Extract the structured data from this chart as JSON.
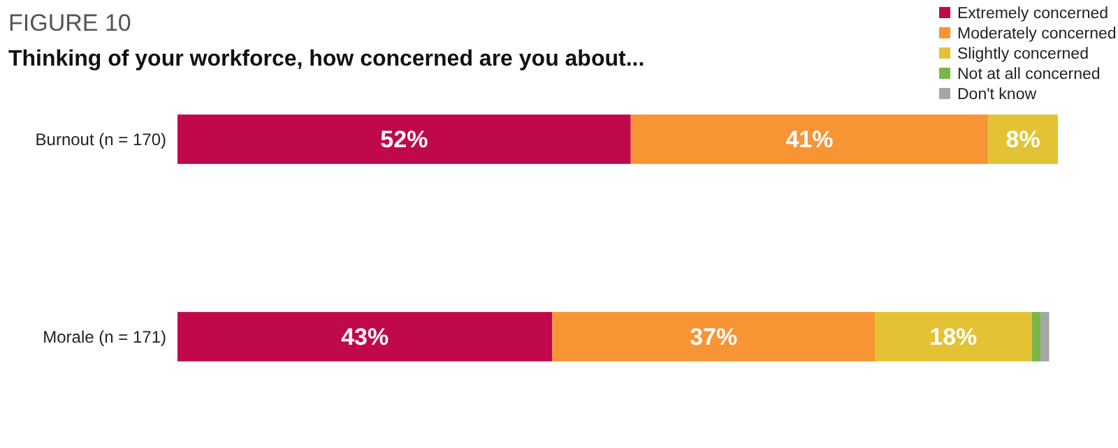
{
  "chart_data": {
    "type": "bar",
    "orientation": "horizontal",
    "stacked": true,
    "annotations": [
      "FIGURE 10"
    ],
    "title": "Thinking of your workforce, how concerned are you about...",
    "categories": [
      "Burnout (n = 170)",
      "Morale (n = 171)"
    ],
    "legend": "top right",
    "series": [
      {
        "name": "Extremely concerned",
        "color": "#c0094a",
        "values": [
          52,
          43
        ],
        "value_labels": [
          "52%",
          "43%"
        ]
      },
      {
        "name": "Moderately concerned",
        "color": "#f79433",
        "values": [
          41,
          37
        ],
        "value_labels": [
          "41%",
          "37%"
        ]
      },
      {
        "name": "Slightly concerned",
        "color": "#e3c234",
        "values": [
          8,
          18
        ],
        "value_labels": [
          "8%",
          "18%"
        ]
      },
      {
        "name": "Not at all concerned",
        "color": "#7ab648",
        "values": [
          null,
          1
        ],
        "value_labels": [
          null,
          null
        ]
      },
      {
        "name": "Don't know",
        "color": "#a6a6a6",
        "values": [
          null,
          1
        ],
        "value_labels": [
          null,
          null
        ]
      }
    ]
  }
}
